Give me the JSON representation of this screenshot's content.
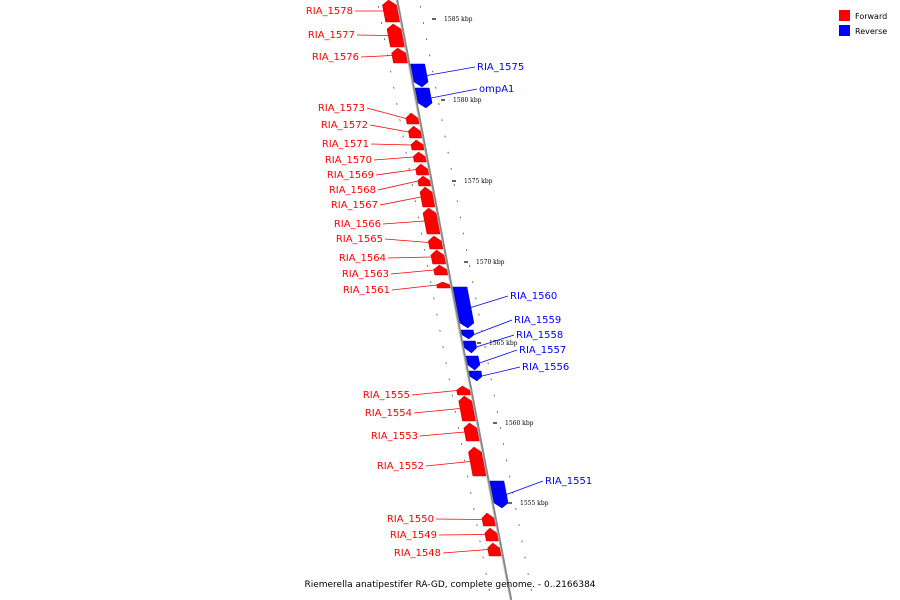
{
  "caption": "Riemerella anatipestifer RA-GD, complete genome. - 0..2166384",
  "legend": [
    {
      "label": "Forward",
      "color": "#ff0000"
    },
    {
      "label": "Reverse",
      "color": "#0000ff"
    }
  ],
  "colors": {
    "forward": "#ff0000",
    "reverse": "#0000ff",
    "axis": "#888888"
  },
  "ruler_labels": [
    "1585 kbp",
    "1580 kbp",
    "1575 kbp",
    "1570 kbp",
    "1565 kbp",
    "1560 kbp",
    "1555 kbp"
  ],
  "genes": [
    {
      "name": "RIA_1578",
      "strand": "forward"
    },
    {
      "name": "RIA_1577",
      "strand": "forward"
    },
    {
      "name": "RIA_1576",
      "strand": "forward"
    },
    {
      "name": "RIA_1575",
      "strand": "reverse"
    },
    {
      "name": "ompA1",
      "strand": "reverse"
    },
    {
      "name": "RIA_1573",
      "strand": "forward"
    },
    {
      "name": "RIA_1572",
      "strand": "forward"
    },
    {
      "name": "RIA_1571",
      "strand": "forward"
    },
    {
      "name": "RIA_1570",
      "strand": "forward"
    },
    {
      "name": "RIA_1569",
      "strand": "forward"
    },
    {
      "name": "RIA_1568",
      "strand": "forward"
    },
    {
      "name": "RIA_1567",
      "strand": "forward"
    },
    {
      "name": "RIA_1566",
      "strand": "forward"
    },
    {
      "name": "RIA_1565",
      "strand": "forward"
    },
    {
      "name": "RIA_1564",
      "strand": "forward"
    },
    {
      "name": "RIA_1563",
      "strand": "forward"
    },
    {
      "name": "RIA_1561",
      "strand": "forward"
    },
    {
      "name": "RIA_1560",
      "strand": "reverse"
    },
    {
      "name": "RIA_1559",
      "strand": "reverse"
    },
    {
      "name": "RIA_1558",
      "strand": "reverse"
    },
    {
      "name": "RIA_1557",
      "strand": "reverse"
    },
    {
      "name": "RIA_1556",
      "strand": "reverse"
    },
    {
      "name": "RIA_1555",
      "strand": "forward"
    },
    {
      "name": "RIA_1554",
      "strand": "forward"
    },
    {
      "name": "RIA_1553",
      "strand": "forward"
    },
    {
      "name": "RIA_1552",
      "strand": "forward"
    },
    {
      "name": "RIA_1551",
      "strand": "reverse"
    },
    {
      "name": "RIA_1550",
      "strand": "forward"
    },
    {
      "name": "RIA_1549",
      "strand": "forward"
    },
    {
      "name": "RIA_1548",
      "strand": "forward"
    }
  ]
}
